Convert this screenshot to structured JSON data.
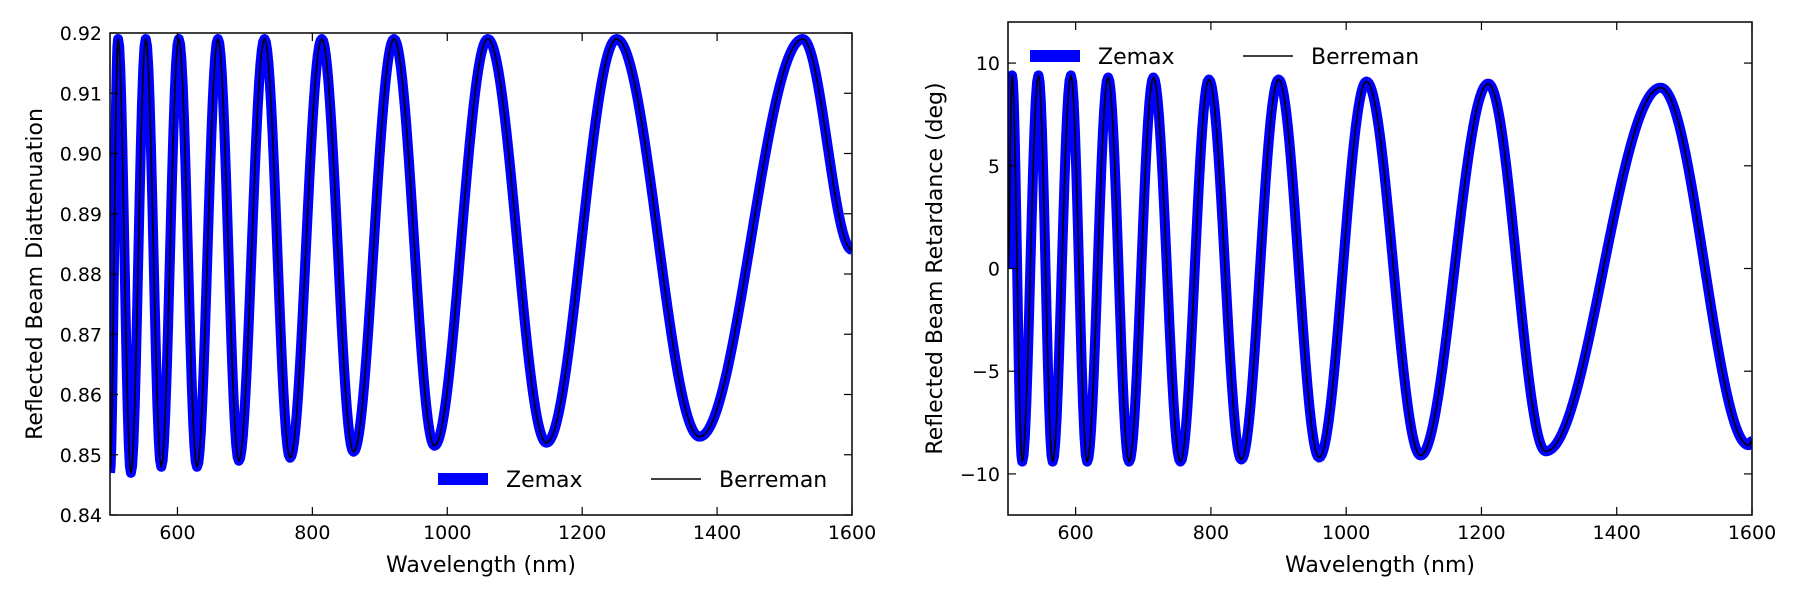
{
  "colors": {
    "zemax": "#0000ff",
    "berreman": "#000000",
    "axes": "#000000",
    "background": "#ffffff"
  },
  "chart_data": [
    {
      "type": "line",
      "xlabel": "Wavelength (nm)",
      "ylabel": "Reflected Beam Diattenuation",
      "xlim": [
        500,
        1600
      ],
      "ylim": [
        0.84,
        0.92
      ],
      "xticks": [
        600,
        800,
        1000,
        1200,
        1400,
        1600
      ],
      "yticks": [
        0.84,
        0.85,
        0.86,
        0.87,
        0.88,
        0.89,
        0.9,
        0.91,
        0.92
      ],
      "ytick_labels": [
        "0.84",
        "0.85",
        "0.86",
        "0.87",
        "0.88",
        "0.89",
        "0.90",
        "0.91",
        "0.92"
      ],
      "grid": false,
      "legend_position": "bottom-right",
      "series": [
        {
          "name": "Zemax",
          "style": "thick",
          "color": "#0000ff"
        },
        {
          "name": "Berreman",
          "style": "thin",
          "color": "#000000"
        }
      ],
      "peaks_x": [
        512,
        553,
        602,
        660,
        729,
        814,
        921,
        1060,
        1251,
        1527
      ],
      "troughs_x": [
        531,
        576,
        629,
        691,
        767,
        861,
        981,
        1147,
        1374
      ],
      "peak_y": 0.919,
      "trough_y": [
        0.847,
        0.848,
        0.848,
        0.849,
        0.8495,
        0.8505,
        0.8515,
        0.852,
        0.853
      ],
      "curve_start": [
        500,
        0.847
      ],
      "curve_end": [
        1600,
        0.884
      ]
    },
    {
      "type": "line",
      "xlabel": "Wavelength (nm)",
      "ylabel": "Reflected Beam Retardance (deg)",
      "xlim": [
        500,
        1600
      ],
      "ylim": [
        -12,
        12
      ],
      "xticks": [
        600,
        800,
        1000,
        1200,
        1400,
        1600
      ],
      "yticks": [
        -10,
        -5,
        0,
        5,
        10
      ],
      "ytick_labels": [
        "−10",
        "−5",
        "0",
        "5",
        "10"
      ],
      "grid": false,
      "legend_position": "top-left",
      "series": [
        {
          "name": "Zemax",
          "style": "thick",
          "color": "#0000ff"
        },
        {
          "name": "Berreman",
          "style": "thin",
          "color": "#000000"
        }
      ],
      "peaks_x": [
        506,
        545,
        593,
        648,
        715,
        797,
        900,
        1030,
        1210,
        1465
      ],
      "troughs_x": [
        521,
        566,
        617,
        679,
        755,
        845,
        960,
        1110,
        1295,
        1595
      ],
      "peak_y": [
        9.4,
        9.4,
        9.4,
        9.3,
        9.3,
        9.2,
        9.2,
        9.1,
        9.0,
        8.8
      ],
      "trough_y": [
        -9.4,
        -9.4,
        -9.4,
        -9.4,
        -9.4,
        -9.3,
        -9.2,
        -9.1,
        -8.9,
        -8.6
      ],
      "curve_start": [
        500,
        0.0
      ],
      "curve_end": [
        1600,
        -8.4
      ]
    }
  ]
}
